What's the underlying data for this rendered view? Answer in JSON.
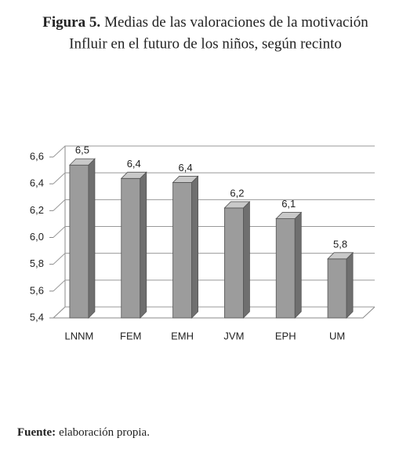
{
  "chart_data": {
    "type": "bar",
    "title_prefix": "Figura 5.",
    "title": "Medias de las valoraciones de la motivación",
    "subtitle": "Influir en el futuro de los niños, según recinto",
    "categories": [
      "LNNM",
      "FEM",
      "EMH",
      "JVM",
      "EPH",
      "UM"
    ],
    "values": [
      6.54,
      6.44,
      6.41,
      6.22,
      6.14,
      5.84
    ],
    "value_labels": [
      "6,5",
      "6,4",
      "6,4",
      "6,2",
      "6,1",
      "5,8"
    ],
    "color": "#9c9c9c",
    "ylim": [
      5.4,
      6.6
    ],
    "yticks": [
      {
        "value": 5.4,
        "label": "5,4"
      },
      {
        "value": 5.6,
        "label": "5,6"
      },
      {
        "value": 5.8,
        "label": "5,8"
      },
      {
        "value": 6.0,
        "label": "6,0"
      },
      {
        "value": 6.2,
        "label": "6,2"
      },
      {
        "value": 6.4,
        "label": "6,4"
      },
      {
        "value": 6.6,
        "label": "6,6"
      }
    ],
    "grid": true
  },
  "source_label": "Fuente:",
  "source": "elaboración propia."
}
